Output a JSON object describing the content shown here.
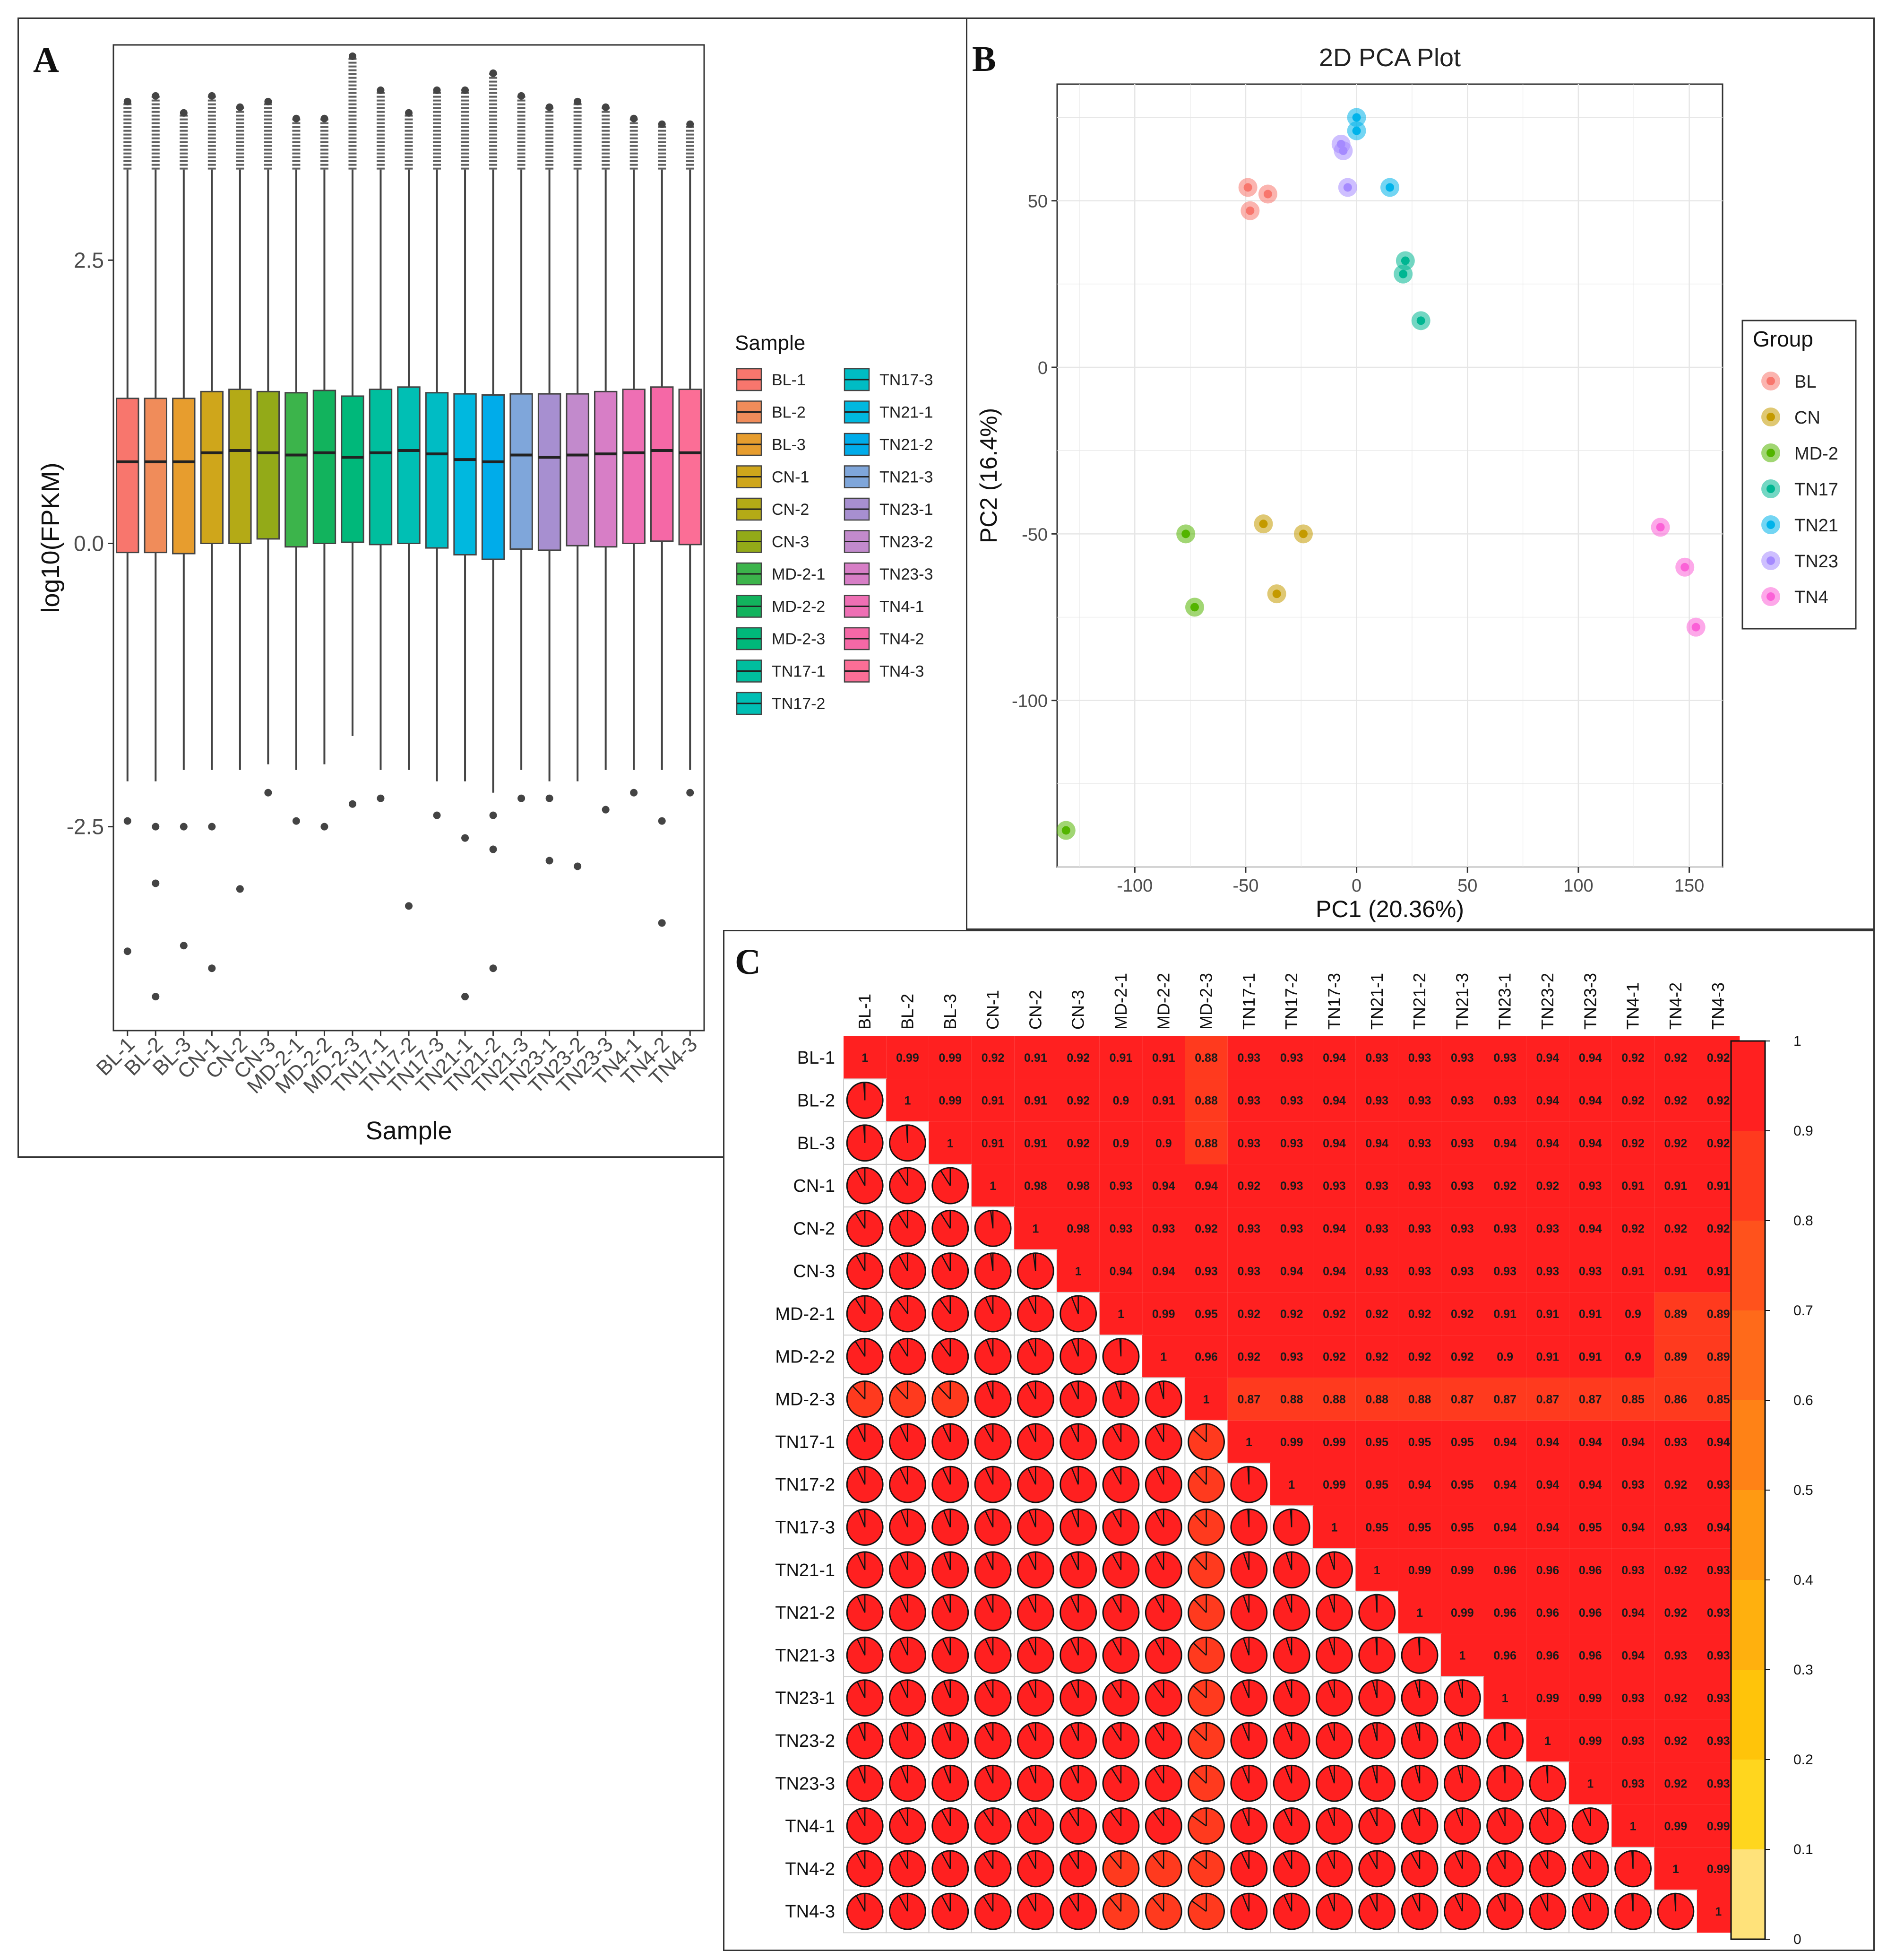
{
  "panel_labels": {
    "a": "A",
    "b": "B",
    "c": "C"
  },
  "chart_data": [
    {
      "panel": "A",
      "type": "box",
      "title": "",
      "xlabel": "Sample",
      "ylabel": "log10(FPKM)",
      "ylim": [
        -4.3,
        4.4
      ],
      "yticks": [
        -2.5,
        0.0,
        2.5
      ],
      "ytick_labels": [
        "-2.5",
        "0.0",
        "2.5"
      ],
      "legend_title": "Sample",
      "legend_position": "right",
      "samples": [
        "BL-1",
        "BL-2",
        "BL-3",
        "CN-1",
        "CN-2",
        "CN-3",
        "MD-2-1",
        "MD-2-2",
        "MD-2-3",
        "TN17-1",
        "TN17-2",
        "TN17-3",
        "TN21-1",
        "TN21-2",
        "TN21-3",
        "TN23-1",
        "TN23-2",
        "TN23-3",
        "TN4-1",
        "TN4-2",
        "TN4-3"
      ],
      "colors": [
        "#F8766D",
        "#F08C5A",
        "#E79D2E",
        "#CFA61B",
        "#B4AA16",
        "#93AA18",
        "#3CB44B",
        "#12B35D",
        "#00B87A",
        "#00BE9E",
        "#00BFB4",
        "#00BCC4",
        "#00B8DF",
        "#00ACEA",
        "#7FA6DA",
        "#A78FD0",
        "#C28ACC",
        "#D77EC6",
        "#EE6FB4",
        "#F568A6",
        "#FB6E96"
      ],
      "boxes": [
        {
          "q1": -0.08,
          "median": 0.72,
          "q3": 1.28,
          "wlo": -2.1,
          "whi": 3.3
        },
        {
          "q1": -0.08,
          "median": 0.72,
          "q3": 1.28,
          "wlo": -2.1,
          "whi": 3.3
        },
        {
          "q1": -0.09,
          "median": 0.72,
          "q3": 1.28,
          "wlo": -2.0,
          "whi": 3.3
        },
        {
          "q1": 0.0,
          "median": 0.8,
          "q3": 1.34,
          "wlo": -2.0,
          "whi": 3.3
        },
        {
          "q1": 0.0,
          "median": 0.82,
          "q3": 1.36,
          "wlo": -2.0,
          "whi": 3.3
        },
        {
          "q1": 0.04,
          "median": 0.8,
          "q3": 1.34,
          "wlo": -1.95,
          "whi": 3.3
        },
        {
          "q1": -0.03,
          "median": 0.78,
          "q3": 1.33,
          "wlo": -2.0,
          "whi": 3.3
        },
        {
          "q1": 0.0,
          "median": 0.8,
          "q3": 1.35,
          "wlo": -1.95,
          "whi": 3.3
        },
        {
          "q1": 0.01,
          "median": 0.76,
          "q3": 1.3,
          "wlo": -1.7,
          "whi": 3.3
        },
        {
          "q1": -0.01,
          "median": 0.8,
          "q3": 1.36,
          "wlo": -2.0,
          "whi": 3.3
        },
        {
          "q1": 0.0,
          "median": 0.82,
          "q3": 1.38,
          "wlo": -2.0,
          "whi": 3.3
        },
        {
          "q1": -0.04,
          "median": 0.79,
          "q3": 1.33,
          "wlo": -2.1,
          "whi": 3.3
        },
        {
          "q1": -0.1,
          "median": 0.74,
          "q3": 1.32,
          "wlo": -2.1,
          "whi": 3.3
        },
        {
          "q1": -0.14,
          "median": 0.72,
          "q3": 1.31,
          "wlo": -2.2,
          "whi": 3.3
        },
        {
          "q1": -0.05,
          "median": 0.78,
          "q3": 1.32,
          "wlo": -2.0,
          "whi": 3.3
        },
        {
          "q1": -0.06,
          "median": 0.76,
          "q3": 1.32,
          "wlo": -2.1,
          "whi": 3.3
        },
        {
          "q1": -0.02,
          "median": 0.78,
          "q3": 1.32,
          "wlo": -2.1,
          "whi": 3.3
        },
        {
          "q1": -0.03,
          "median": 0.79,
          "q3": 1.34,
          "wlo": -2.0,
          "whi": 3.3
        },
        {
          "q1": 0.0,
          "median": 0.8,
          "q3": 1.36,
          "wlo": -2.0,
          "whi": 3.3
        },
        {
          "q1": 0.02,
          "median": 0.82,
          "q3": 1.38,
          "wlo": -2.0,
          "whi": 3.3
        },
        {
          "q1": -0.01,
          "median": 0.8,
          "q3": 1.36,
          "wlo": -2.0,
          "whi": 3.3
        }
      ],
      "outliers_high_max": [
        3.9,
        3.95,
        3.8,
        3.95,
        3.85,
        3.9,
        3.75,
        3.75,
        4.3,
        4.0,
        3.8,
        4.0,
        4.0,
        4.15,
        3.95,
        3.85,
        3.9,
        3.85,
        3.75,
        3.7,
        3.7
      ],
      "outliers_low": [
        [
          -2.45,
          -3.6
        ],
        [
          -2.5,
          -3.0,
          -4.0
        ],
        [
          -2.5,
          -3.55
        ],
        [
          -2.5,
          -3.75
        ],
        [
          -3.05
        ],
        [
          -2.2
        ],
        [
          -2.45
        ],
        [
          -2.5
        ],
        [
          -2.3
        ],
        [
          -2.25
        ],
        [
          -3.2
        ],
        [
          -2.4
        ],
        [
          -2.6,
          -4.0
        ],
        [
          -2.4,
          -2.7,
          -3.75
        ],
        [
          -2.25
        ],
        [
          -2.25,
          -2.8
        ],
        [
          -2.85
        ],
        [
          -2.35
        ],
        [
          -2.2
        ],
        [
          -2.45,
          -3.35
        ],
        [
          -2.2
        ]
      ]
    },
    {
      "panel": "B",
      "type": "scatter",
      "title": "2D PCA Plot",
      "xlabel": "PC1 (20.36%)",
      "ylabel": "PC2 (16.4%)",
      "xlim": [
        -135,
        165
      ],
      "ylim": [
        -150,
        85
      ],
      "xticks": [
        -100,
        -50,
        0,
        50,
        100,
        150
      ],
      "xtick_labels": [
        "-100",
        "-50",
        "0",
        "50",
        "100",
        "150"
      ],
      "yticks": [
        -100,
        -50,
        0,
        50
      ],
      "ytick_labels": [
        "-100",
        "-50",
        "0",
        "50"
      ],
      "grid": true,
      "legend_title": "Group",
      "legend_position": "right",
      "series": [
        {
          "name": "BL",
          "color": "#F8766D",
          "points": [
            [
              -49,
              54
            ],
            [
              -48,
              47
            ],
            [
              -40,
              52
            ]
          ]
        },
        {
          "name": "CN",
          "color": "#C49A00",
          "points": [
            [
              -42,
              -47
            ],
            [
              -24,
              -50
            ],
            [
              -36,
              -68
            ]
          ]
        },
        {
          "name": "MD-2",
          "color": "#53B400",
          "points": [
            [
              -77,
              -50
            ],
            [
              -73,
              -72
            ],
            [
              -131,
              -139
            ]
          ]
        },
        {
          "name": "TN17",
          "color": "#00B692",
          "points": [
            [
              22,
              32
            ],
            [
              21,
              28
            ],
            [
              29,
              14
            ]
          ]
        },
        {
          "name": "TN21",
          "color": "#00B3EA",
          "points": [
            [
              0,
              75
            ],
            [
              0,
              71
            ],
            [
              15,
              54
            ]
          ]
        },
        {
          "name": "TN23",
          "color": "#A58AFF",
          "points": [
            [
              -7,
              67
            ],
            [
              -6,
              65
            ],
            [
              -4,
              54
            ]
          ]
        },
        {
          "name": "TN4",
          "color": "#FB61D7",
          "points": [
            [
              137,
              -48
            ],
            [
              148,
              -60
            ],
            [
              153,
              -78
            ]
          ]
        }
      ]
    },
    {
      "panel": "C",
      "type": "heatmap",
      "title": "",
      "labels": [
        "BL-1",
        "BL-2",
        "BL-3",
        "CN-1",
        "CN-2",
        "CN-3",
        "MD-2-1",
        "MD-2-2",
        "MD-2-3",
        "TN17-1",
        "TN17-2",
        "TN17-3",
        "TN21-1",
        "TN21-2",
        "TN21-3",
        "TN23-1",
        "TN23-2",
        "TN23-3",
        "TN4-1",
        "TN4-2",
        "TN4-3"
      ],
      "upper_triangle_values": [
        [
          "1",
          "0.99",
          "0.99",
          "0.92",
          "0.91",
          "0.92",
          "0.91",
          "0.91",
          "0.88",
          "0.93",
          "0.93",
          "0.94",
          "0.93",
          "0.93",
          "0.93",
          "0.93",
          "0.94",
          "0.94",
          "0.92",
          "0.92",
          "0.92"
        ],
        [
          "1",
          "0.99",
          "0.91",
          "0.91",
          "0.92",
          "0.9",
          "0.91",
          "0.88",
          "0.93",
          "0.93",
          "0.94",
          "0.93",
          "0.93",
          "0.93",
          "0.93",
          "0.94",
          "0.94",
          "0.92",
          "0.92",
          "0.92"
        ],
        [
          "1",
          "0.91",
          "0.91",
          "0.92",
          "0.9",
          "0.9",
          "0.88",
          "0.93",
          "0.93",
          "0.94",
          "0.94",
          "0.93",
          "0.93",
          "0.94",
          "0.94",
          "0.94",
          "0.92",
          "0.92",
          "0.92"
        ],
        [
          "1",
          "0.98",
          "0.98",
          "0.93",
          "0.94",
          "0.94",
          "0.92",
          "0.93",
          "0.93",
          "0.93",
          "0.93",
          "0.93",
          "0.92",
          "0.92",
          "0.93",
          "0.91",
          "0.91",
          "0.91"
        ],
        [
          "1",
          "0.98",
          "0.93",
          "0.93",
          "0.92",
          "0.93",
          "0.93",
          "0.94",
          "0.93",
          "0.93",
          "0.93",
          "0.93",
          "0.93",
          "0.94",
          "0.92",
          "0.92",
          "0.92"
        ],
        [
          "1",
          "0.94",
          "0.94",
          "0.93",
          "0.93",
          "0.94",
          "0.94",
          "0.93",
          "0.93",
          "0.93",
          "0.93",
          "0.93",
          "0.93",
          "0.91",
          "0.91",
          "0.91"
        ],
        [
          "1",
          "0.99",
          "0.95",
          "0.92",
          "0.92",
          "0.92",
          "0.92",
          "0.92",
          "0.92",
          "0.91",
          "0.91",
          "0.91",
          "0.9",
          "0.89",
          "0.89"
        ],
        [
          "1",
          "0.96",
          "0.92",
          "0.93",
          "0.92",
          "0.92",
          "0.92",
          "0.92",
          "0.9",
          "0.91",
          "0.91",
          "0.9",
          "0.89",
          "0.89"
        ],
        [
          "1",
          "0.87",
          "0.88",
          "0.88",
          "0.88",
          "0.88",
          "0.87",
          "0.87",
          "0.87",
          "0.87",
          "0.85",
          "0.86",
          "0.85"
        ],
        [
          "1",
          "0.99",
          "0.99",
          "0.95",
          "0.95",
          "0.95",
          "0.94",
          "0.94",
          "0.94",
          "0.94",
          "0.93",
          "0.94"
        ],
        [
          "1",
          "0.99",
          "0.95",
          "0.94",
          "0.95",
          "0.94",
          "0.94",
          "0.94",
          "0.93",
          "0.92",
          "0.93"
        ],
        [
          "1",
          "0.95",
          "0.95",
          "0.95",
          "0.94",
          "0.94",
          "0.95",
          "0.94",
          "0.93",
          "0.94"
        ],
        [
          "1",
          "0.99",
          "0.99",
          "0.96",
          "0.96",
          "0.96",
          "0.93",
          "0.92",
          "0.93"
        ],
        [
          "1",
          "0.99",
          "0.96",
          "0.96",
          "0.96",
          "0.94",
          "0.92",
          "0.93"
        ],
        [
          "1",
          "0.96",
          "0.96",
          "0.96",
          "0.94",
          "0.93",
          "0.93"
        ],
        [
          "1",
          "0.99",
          "0.99",
          "0.93",
          "0.92",
          "0.93"
        ],
        [
          "1",
          "0.99",
          "0.93",
          "0.92",
          "0.93"
        ],
        [
          "1",
          "0.93",
          "0.92",
          "0.93"
        ],
        [
          "1",
          "0.99",
          "0.99"
        ],
        [
          "1",
          "0.99"
        ],
        [
          "1"
        ]
      ],
      "colorbar_ticks": [
        "1",
        "0.9",
        "0.8",
        "0.7",
        "0.6",
        "0.5",
        "0.4",
        "0.3",
        "0.2",
        "0.1",
        "0"
      ],
      "colorbar_colors": [
        "#FF2020",
        "#FF3A1E",
        "#FF521C",
        "#FF6A1A",
        "#FF8216",
        "#FF9A12",
        "#FFB00E",
        "#FFC40A",
        "#FFD61E",
        "#FFE27A"
      ]
    }
  ]
}
